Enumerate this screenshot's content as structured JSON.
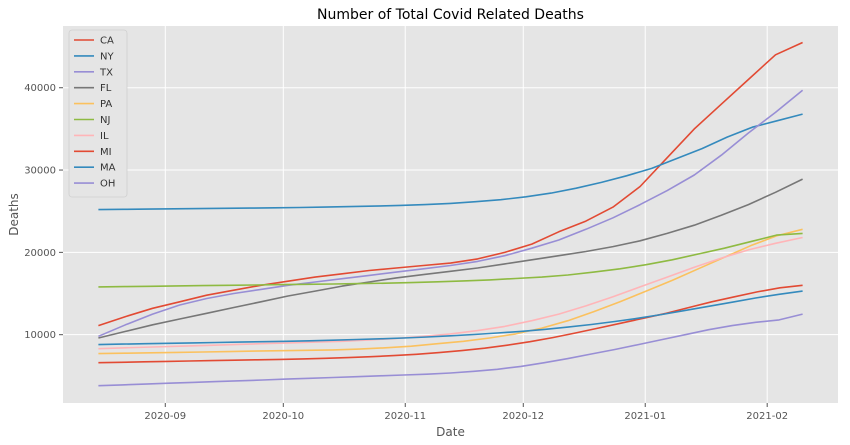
{
  "chart_data": {
    "type": "line",
    "title": "Number of Total Covid Related Deaths",
    "xlabel": "Date",
    "ylabel": "Deaths",
    "x_start": "2020-08-15",
    "x_end": "2021-02-10",
    "xlim": [
      "2020-08-06",
      "2021-02-19"
    ],
    "ylim": [
      1700,
      47500
    ],
    "x_ticks": [
      "2020-09",
      "2020-10",
      "2020-11",
      "2020-12",
      "2021-01",
      "2021-02"
    ],
    "y_ticks": [
      10000,
      20000,
      30000,
      40000
    ],
    "grid": true,
    "legend_position": "top-left",
    "series": [
      {
        "name": "CA",
        "color": "#E24A33",
        "values": [
          11100,
          12200,
          13200,
          14000,
          14800,
          15400,
          16000,
          16500,
          17000,
          17400,
          17800,
          18100,
          18400,
          18700,
          19200,
          20000,
          21000,
          22500,
          23800,
          25500,
          28000,
          31500,
          35000,
          38000,
          41000,
          44000,
          45500
        ]
      },
      {
        "name": "NY",
        "color": "#348ABD",
        "values": [
          25200,
          25230,
          25260,
          25290,
          25320,
          25350,
          25380,
          25410,
          25450,
          25500,
          25560,
          25620,
          25700,
          25800,
          25950,
          26150,
          26400,
          26750,
          27200,
          27800,
          28500,
          29300,
          30200,
          31400,
          32600,
          34000,
          35200,
          36000,
          36800
        ]
      },
      {
        "name": "TX",
        "color": "#988ED5",
        "values": [
          9800,
          11200,
          12500,
          13600,
          14400,
          15000,
          15500,
          16000,
          16400,
          16800,
          17200,
          17600,
          18000,
          18400,
          18900,
          19600,
          20500,
          21500,
          22800,
          24200,
          25800,
          27500,
          29400,
          31800,
          34500,
          37000,
          39700
        ]
      },
      {
        "name": "FL",
        "color": "#777777",
        "values": [
          9600,
          10400,
          11200,
          11900,
          12600,
          13300,
          14000,
          14700,
          15300,
          15900,
          16400,
          16900,
          17300,
          17700,
          18100,
          18600,
          19100,
          19600,
          20100,
          20700,
          21400,
          22300,
          23300,
          24500,
          25800,
          27300,
          28900
        ]
      },
      {
        "name": "PA",
        "color": "#FBC15E",
        "values": [
          7700,
          7750,
          7800,
          7850,
          7900,
          7950,
          8000,
          8050,
          8100,
          8150,
          8250,
          8400,
          8600,
          8900,
          9200,
          9600,
          10100,
          10800,
          11700,
          12800,
          14000,
          15300,
          16600,
          18000,
          19400,
          20800,
          22000,
          22800
        ]
      },
      {
        "name": "NJ",
        "color": "#8EBA42",
        "values": [
          15800,
          15840,
          15880,
          15920,
          15960,
          16000,
          16040,
          16080,
          16120,
          16160,
          16200,
          16260,
          16330,
          16420,
          16530,
          16660,
          16820,
          17000,
          17250,
          17600,
          18000,
          18500,
          19100,
          19800,
          20500,
          21300,
          22100,
          22300
        ]
      },
      {
        "name": "IL",
        "color": "#FFB5B8",
        "values": [
          8300,
          8400,
          8500,
          8600,
          8700,
          8800,
          8900,
          9000,
          9100,
          9200,
          9350,
          9550,
          9800,
          10100,
          10500,
          11000,
          11700,
          12500,
          13500,
          14600,
          15800,
          17000,
          18200,
          19300,
          20300,
          21100,
          21800
        ]
      },
      {
        "name": "MI",
        "color": "#E24A33",
        "values": [
          6600,
          6650,
          6700,
          6750,
          6800,
          6850,
          6900,
          6950,
          7000,
          7060,
          7130,
          7220,
          7330,
          7460,
          7620,
          7820,
          8060,
          8360,
          8720,
          9150,
          9650,
          10200,
          10800,
          11400,
          12000,
          12600,
          13300,
          14000,
          14600,
          15200,
          15700,
          16000
        ]
      },
      {
        "name": "MA",
        "color": "#348ABD",
        "values": [
          8800,
          8850,
          8900,
          8950,
          9000,
          9050,
          9100,
          9150,
          9200,
          9260,
          9330,
          9410,
          9500,
          9600,
          9720,
          9860,
          10020,
          10200,
          10400,
          10640,
          10920,
          11240,
          11600,
          12000,
          12450,
          12950,
          13450,
          13950,
          14450,
          14900,
          15300
        ]
      },
      {
        "name": "OH",
        "color": "#988ED5",
        "values": [
          3800,
          3900,
          4000,
          4100,
          4200,
          4300,
          4400,
          4500,
          4600,
          4700,
          4800,
          4900,
          5000,
          5100,
          5200,
          5350,
          5550,
          5800,
          6150,
          6600,
          7100,
          7650,
          8200,
          8800,
          9400,
          10000,
          10600,
          11100,
          11500,
          11800,
          12500
        ]
      }
    ]
  }
}
